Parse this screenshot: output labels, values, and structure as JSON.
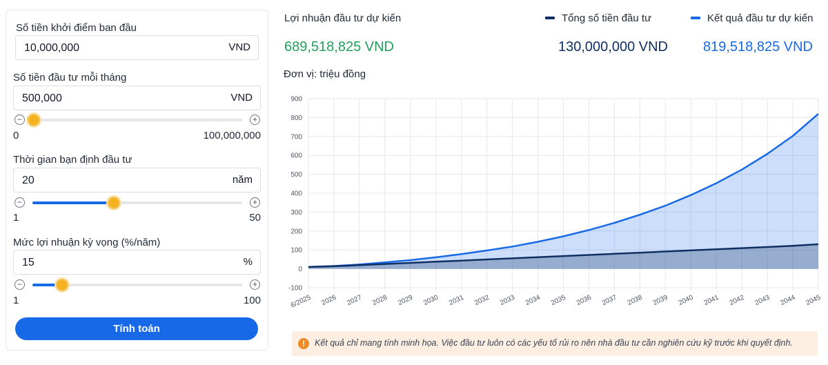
{
  "form": {
    "initial": {
      "label": "Số tiền khởi điểm ban đầu",
      "value": "10,000,000",
      "unit": "VND"
    },
    "monthly": {
      "label": "Số tiền đầu tư mỗi tháng",
      "value": "500,000",
      "unit": "VND",
      "min": "0",
      "max": "100,000,000",
      "fraction": 0.005
    },
    "years": {
      "label": "Thời gian bạn định đầu tư",
      "value": "20",
      "unit": "năm",
      "min": "1",
      "max": "50",
      "fraction": 0.388
    },
    "rate": {
      "label": "Mức lợi nhuận kỳ vọng (%/năm)",
      "value": "15",
      "unit": "%",
      "min": "1",
      "max": "100",
      "fraction": 0.141
    },
    "minus_icon": "minus-circle-icon",
    "plus_icon": "plus-circle-icon",
    "calc_label": "Tính toán"
  },
  "summary": {
    "profit_label": "Lợi nhuận đầu tư dự kiến",
    "profit_value": "689,518,825 VND",
    "total_label": "Tổng số tiền đầu tư",
    "total_value": "130,000,000 VND",
    "result_label": "Kết quả đầu tư dự kiến",
    "result_value": "819,518,825 VND",
    "unit_label": "Đơn vị: triệu đồng",
    "colors": {
      "profit": "#22a05a",
      "total": "#0f2f63",
      "result": "#1769e8"
    }
  },
  "chart_data": {
    "type": "area",
    "x": [
      "6/2025",
      "2026",
      "2027",
      "2028",
      "2029",
      "2030",
      "2031",
      "2032",
      "2033",
      "2034",
      "2035",
      "2036",
      "2037",
      "2038",
      "2039",
      "2040",
      "2041",
      "2042",
      "2043",
      "2044",
      "2045"
    ],
    "ylim": [
      -100,
      900
    ],
    "yticks": [
      -100,
      0,
      100,
      200,
      300,
      400,
      500,
      600,
      700,
      800,
      900
    ],
    "grid": true,
    "series": [
      {
        "name": "Tổng số tiền đầu tư",
        "color": "#0f2f63",
        "values": [
          10,
          13.5,
          19.5,
          25.5,
          31.5,
          37.5,
          43.5,
          49.5,
          55.5,
          61.5,
          67.5,
          73.5,
          79.5,
          85.5,
          91.5,
          97.5,
          103.5,
          109.5,
          115.5,
          121.5,
          130
        ]
      },
      {
        "name": "Kết quả đầu tư dự kiến",
        "color": "#1769e8",
        "values": [
          10,
          15,
          23,
          34,
          46,
          61,
          78,
          97,
          118,
          143,
          172,
          205,
          243,
          286,
          334,
          390,
          453,
          525,
          608,
          703,
          820
        ]
      }
    ]
  },
  "notice": {
    "icon": "exclamation-circle-icon",
    "text": "Kết quả chỉ mang tính minh họa. Việc đầu tư luôn có các yếu tố rủi ro nên nhà đầu tư cần nghiên cứu kỹ trước khi quyết định."
  }
}
